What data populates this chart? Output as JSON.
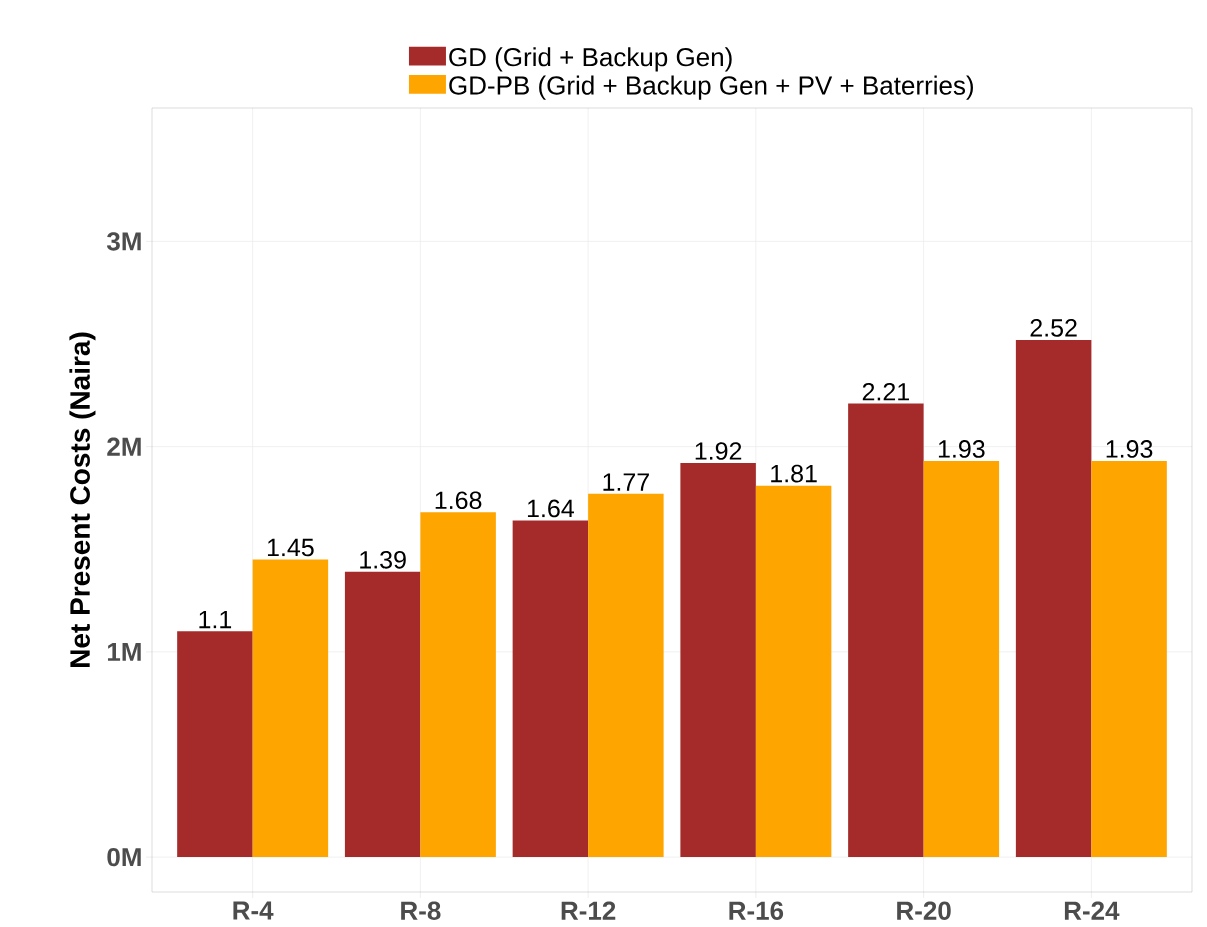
{
  "chart_data": {
    "type": "bar",
    "ylabel": "Net Present Costs (Naira)",
    "categories": [
      "R-4",
      "R-8",
      "R-12",
      "R-16",
      "R-20",
      "R-24"
    ],
    "series": [
      {
        "name": "GD (Grid + Backup Gen)",
        "color": "#a52a2a",
        "values": [
          1.1,
          1.39,
          1.64,
          1.92,
          2.21,
          2.52
        ]
      },
      {
        "name": "GD-PB (Grid + Backup Gen + PV + Baterries)",
        "color": "#ffa500",
        "values": [
          1.45,
          1.68,
          1.77,
          1.81,
          1.93,
          1.93
        ]
      }
    ],
    "ylim": [
      -0.17,
      3.65
    ],
    "yticks": [
      {
        "value": 0,
        "label": "0M"
      },
      {
        "value": 1,
        "label": "1M"
      },
      {
        "value": 2,
        "label": "2M"
      },
      {
        "value": 3,
        "label": "3M"
      }
    ],
    "data_labels": true,
    "grid": true,
    "legend": "top"
  }
}
